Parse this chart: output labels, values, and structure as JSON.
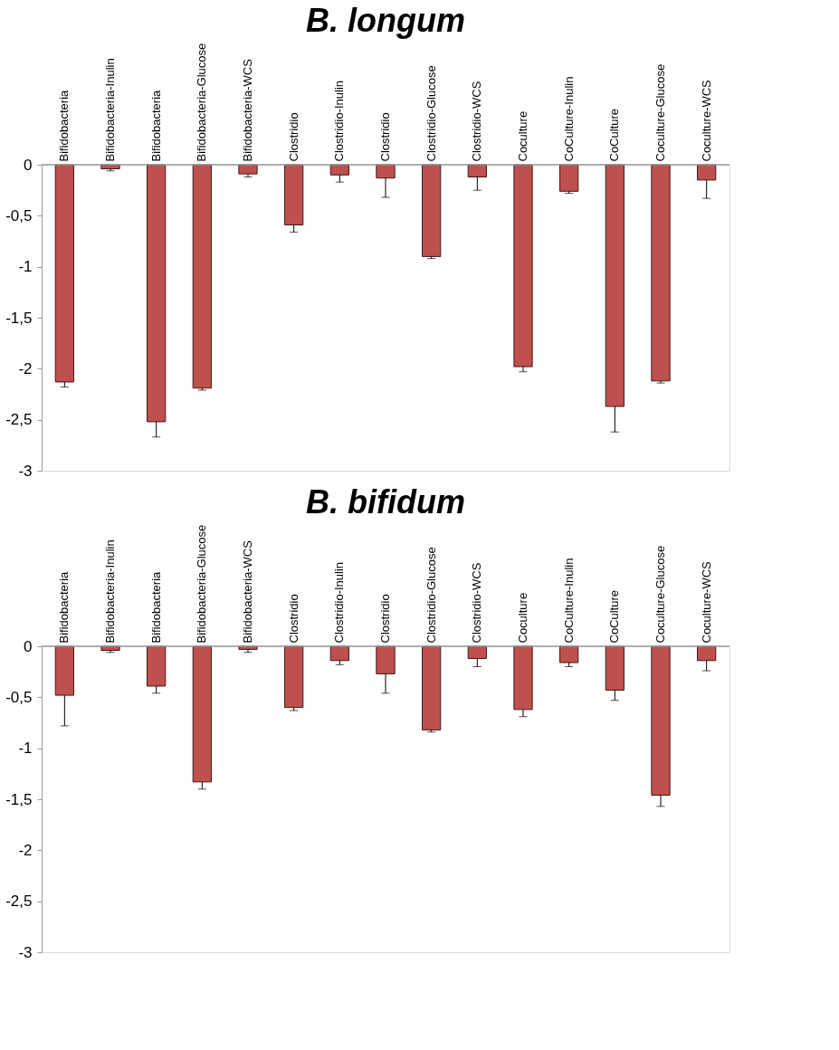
{
  "chart_data": [
    {
      "type": "bar",
      "title": "B. longum",
      "color": "#c0504d",
      "grid": false,
      "categories": [
        "Bifidobacteria",
        "Bifidobacteria-Inulin",
        "Bifidobacteria",
        "Bifidobacteria-Glucose",
        "Bifidobacteria-WCS",
        "Clostridio",
        "Clostridio-Inulin",
        "Clostridio",
        "Clostridio-Glucose",
        "Clostridio-WCS",
        "Coculture",
        "CoCulture-Inulin",
        "CoCulture",
        "Coculture-Glucose",
        "Coculture-WCS"
      ],
      "values": [
        -2.13,
        -0.04,
        -2.52,
        -2.19,
        -0.09,
        -0.59,
        -0.1,
        -0.13,
        -0.9,
        -0.12,
        -1.98,
        -0.26,
        -2.37,
        -2.12,
        -0.15
      ],
      "errors": [
        [
          -2.18,
          -2.13
        ],
        [
          -0.06,
          -0.04
        ],
        [
          -2.67,
          -2.52
        ],
        [
          -2.21,
          -2.19
        ],
        [
          -0.12,
          -0.09
        ],
        [
          -0.66,
          -0.59
        ],
        [
          -0.17,
          -0.1
        ],
        [
          -0.32,
          -0.13
        ],
        [
          -0.92,
          -0.9
        ],
        [
          -0.25,
          -0.12
        ],
        [
          -2.03,
          -1.98
        ],
        [
          -0.28,
          -0.26
        ],
        [
          -2.62,
          -2.37
        ],
        [
          -2.14,
          -2.12
        ],
        [
          -0.33,
          -0.15
        ]
      ],
      "ylim": [
        -3,
        0
      ],
      "yticks": [
        0,
        {
          "value": -0.5,
          "label": "-0,5"
        },
        -1,
        {
          "value": -1.5,
          "label": "-1,5"
        },
        -2,
        {
          "value": -2.5,
          "label": "-2,5"
        },
        -3
      ]
    },
    {
      "type": "bar",
      "title": "B. bifidum",
      "color": "#c0504d",
      "grid": false,
      "categories": [
        "Bifidobacteria",
        "Bifidobacteria-Inulin",
        "Bifidobacteria",
        "Bifidobacteria-Glucose",
        "Bifidobacteria-WCS",
        "Clostridio",
        "Clostridio-Inulin",
        "Clostridio",
        "Clostridio-Glucose",
        "Clostridio-WCS",
        "Coculture",
        "CoCulture-Inulin",
        "CoCulture",
        "Coculture-Glucose",
        "Coculture-WCS"
      ],
      "values": [
        -0.48,
        -0.04,
        -0.39,
        -1.33,
        -0.03,
        -0.6,
        -0.14,
        -0.27,
        -0.82,
        -0.12,
        -0.62,
        -0.16,
        -0.43,
        -1.46,
        -0.14
      ],
      "errors": [
        [
          -0.78,
          -0.48
        ],
        [
          -0.06,
          -0.04
        ],
        [
          -0.46,
          -0.39
        ],
        [
          -1.4,
          -1.33
        ],
        [
          -0.06,
          -0.03
        ],
        [
          -0.63,
          -0.6
        ],
        [
          -0.18,
          -0.14
        ],
        [
          -0.46,
          -0.27
        ],
        [
          -0.84,
          -0.82
        ],
        [
          -0.2,
          -0.12
        ],
        [
          -0.69,
          -0.62
        ],
        [
          -0.2,
          -0.16
        ],
        [
          -0.53,
          -0.43
        ],
        [
          -1.57,
          -1.46
        ],
        [
          -0.24,
          -0.14
        ]
      ],
      "ylim": [
        -3,
        0
      ],
      "yticks": [
        0,
        {
          "value": -0.5,
          "label": "-0,5"
        },
        -1,
        {
          "value": -1.5,
          "label": "-1,5"
        },
        -2,
        {
          "value": -2.5,
          "label": "-2,5"
        },
        -3
      ]
    }
  ]
}
